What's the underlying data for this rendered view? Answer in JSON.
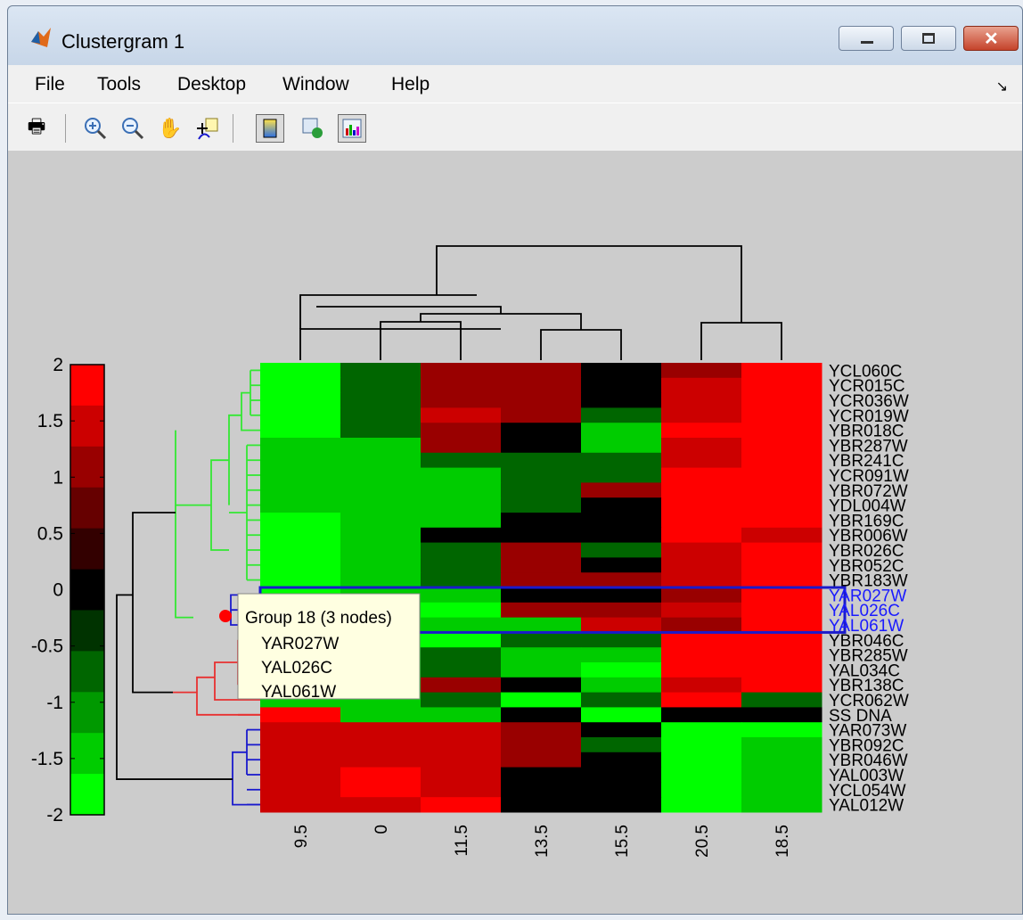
{
  "window": {
    "title": "Clustergram 1",
    "controls": {
      "minimize": "minimize-icon",
      "maximize": "maximize-icon",
      "close": "close-icon"
    }
  },
  "menubar": {
    "items": [
      "File",
      "Tools",
      "Desktop",
      "Window",
      "Help"
    ]
  },
  "toolbar": {
    "icons": [
      "print-icon",
      "zoom-in-icon",
      "zoom-out-icon",
      "pan-hand-icon",
      "data-cursor-icon",
      "colorbar-toggle-icon",
      "dendrogram-insert-icon",
      "heatmap-insert-icon"
    ]
  },
  "chart_data": {
    "type": "heatmap",
    "colormap": [
      "#00ff00",
      "#000000",
      "#ff0000"
    ],
    "clim": [
      -2,
      2
    ],
    "colorbar_ticks": [
      "2",
      "1.5",
      "1",
      "0.5",
      "0",
      "-0.5",
      "-1",
      "-1.5",
      "-2"
    ],
    "column_labels": [
      "9.5",
      "0",
      "11.5",
      "13.5",
      "15.5",
      "20.5",
      "18.5"
    ],
    "row_labels": [
      "YCL060C",
      "YCR015C",
      "YCR036W",
      "YCR019W",
      "YBR018C",
      "YBR287W",
      "YBR241C",
      "YCR091W",
      "YBR072W",
      "YDL004W",
      "YBR169C",
      "YBR006W",
      "YBR026C",
      "YBR052C",
      "YBR183W",
      "YAR027W",
      "YAL026C",
      "YAL061W",
      "YBR046C",
      "YBR285W",
      "YAL034C",
      "YBR138C",
      "YCR062W",
      "SS DNA",
      "YAR073W",
      "YBR092C",
      "YBR046W",
      "YAL003W",
      "YCL054W",
      "YAL012W"
    ],
    "values": [
      [
        -1.8,
        -1.0,
        1.0,
        1.0,
        0.0,
        1.0,
        1.8
      ],
      [
        -1.8,
        -1.0,
        1.0,
        1.0,
        0.0,
        1.5,
        1.8
      ],
      [
        -1.8,
        -1.0,
        1.0,
        1.0,
        0.0,
        1.5,
        1.8
      ],
      [
        -1.8,
        -1.0,
        1.5,
        1.0,
        -1.0,
        1.5,
        1.8
      ],
      [
        -1.8,
        -1.0,
        1.0,
        0.0,
        -1.5,
        1.8,
        1.8
      ],
      [
        -1.5,
        -1.7,
        1.0,
        0.0,
        -1.5,
        1.5,
        1.8
      ],
      [
        -1.5,
        -1.7,
        -1.0,
        -1.0,
        -1.0,
        1.5,
        1.8
      ],
      [
        -1.5,
        -1.5,
        -1.5,
        -1.0,
        -1.0,
        1.8,
        1.8
      ],
      [
        -1.5,
        -1.7,
        -1.5,
        -1.0,
        1.0,
        1.8,
        1.8
      ],
      [
        -1.5,
        -1.5,
        -1.5,
        -1.0,
        0.0,
        1.8,
        1.8
      ],
      [
        -1.8,
        -1.5,
        -1.5,
        0.0,
        0.0,
        1.8,
        1.8
      ],
      [
        -1.8,
        -1.7,
        0.0,
        0.0,
        0.0,
        1.8,
        1.7
      ],
      [
        -1.8,
        -1.7,
        -1.0,
        1.0,
        -1.0,
        1.5,
        1.8
      ],
      [
        -1.8,
        -1.7,
        -1.0,
        1.0,
        0.0,
        1.5,
        1.8
      ],
      [
        -1.8,
        -1.7,
        -1.0,
        1.0,
        1.0,
        1.5,
        1.8
      ],
      [
        -1.8,
        -1.7,
        -1.5,
        0.0,
        0.0,
        1.0,
        1.8
      ],
      [
        -1.8,
        -1.7,
        -1.8,
        1.0,
        1.0,
        1.5,
        1.8
      ],
      [
        -1.8,
        -1.7,
        -1.5,
        -1.5,
        1.5,
        1.0,
        1.8
      ],
      [
        -1.5,
        -1.8,
        -1.8,
        -1.0,
        -1.0,
        1.8,
        1.8
      ],
      [
        -1.5,
        -1.5,
        -1.0,
        -1.5,
        -1.5,
        1.8,
        1.8
      ],
      [
        -1.5,
        -1.5,
        -1.0,
        -1.5,
        -1.8,
        1.8,
        1.8
      ],
      [
        -1.5,
        -1.5,
        1.0,
        0.0,
        -1.5,
        1.5,
        1.8
      ],
      [
        -1.5,
        -1.5,
        -1.0,
        -1.8,
        -1.0,
        1.8,
        -1.0
      ],
      [
        1.8,
        -1.5,
        -1.5,
        0.0,
        -1.8,
        0.0,
        0.0
      ],
      [
        1.5,
        1.5,
        1.5,
        1.0,
        0.0,
        -1.8,
        -1.8
      ],
      [
        1.5,
        1.5,
        1.5,
        1.0,
        -1.0,
        -1.8,
        -1.7
      ],
      [
        1.5,
        1.5,
        1.5,
        1.0,
        0.0,
        -1.8,
        -1.7
      ],
      [
        1.5,
        1.8,
        1.5,
        0.0,
        0.0,
        -1.8,
        -1.7
      ],
      [
        1.5,
        1.8,
        1.5,
        0.0,
        0.0,
        -1.8,
        -1.7
      ],
      [
        1.5,
        1.5,
        1.8,
        0.0,
        0.0,
        -1.8,
        -1.5
      ]
    ],
    "selected_group": {
      "label": "Group 18  (3 nodes)",
      "members": [
        "YAR027W",
        "YAL026C",
        "YAL061W"
      ]
    },
    "group_colors": {
      "green_cluster": "#33e833",
      "red_cluster": "#e83030",
      "blue_cluster": "#1a1acc",
      "selection_box": "#1a1acc",
      "selected_label": "#1a1aff"
    }
  }
}
